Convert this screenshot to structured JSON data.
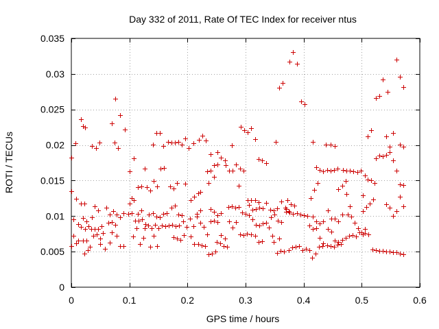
{
  "chart_data": {
    "type": "scatter",
    "title": "Day 332 of 2011, Rate Of TEC Index for receiver ntus",
    "xlabel": "GPS time / hours",
    "ylabel": "ROTI / TECUs",
    "xlim": [
      0,
      0.6
    ],
    "ylim": [
      0,
      0.035
    ],
    "xticks": [
      0,
      0.1,
      0.2,
      0.3,
      0.4,
      0.5,
      0.6
    ],
    "xtick_labels": [
      "0",
      "0.1",
      "0.2",
      "0.3",
      "0.4",
      "0.5",
      "0.6"
    ],
    "yticks": [
      0,
      0.005,
      0.01,
      0.015,
      0.02,
      0.025,
      0.03,
      0.035
    ],
    "ytick_labels": [
      "0",
      "0.005",
      "0.01",
      "0.015",
      "0.02",
      "0.025",
      "0.03",
      "0.035"
    ],
    "grid": true,
    "marker": "+",
    "color": "#cc0000",
    "points": [
      [
        0.0,
        0.0182
      ],
      [
        0.0,
        0.0135
      ],
      [
        0.004,
        0.0095
      ],
      [
        0.008,
        0.0124
      ],
      [
        0.012,
        0.0089
      ],
      [
        0.004,
        0.0072
      ],
      [
        0.008,
        0.0062
      ],
      [
        0.0,
        0.0058
      ],
      [
        0.012,
        0.0066
      ],
      [
        0.016,
        0.0236
      ],
      [
        0.02,
        0.0227
      ],
      [
        0.024,
        0.0225
      ],
      [
        0.007,
        0.0202
      ],
      [
        0.016,
        0.0118
      ],
      [
        0.022,
        0.0118
      ],
      [
        0.02,
        0.0097
      ],
      [
        0.026,
        0.0093
      ],
      [
        0.03,
        0.0086
      ],
      [
        0.034,
        0.0082
      ],
      [
        0.024,
        0.0082
      ],
      [
        0.016,
        0.0085
      ],
      [
        0.02,
        0.0066
      ],
      [
        0.026,
        0.0066
      ],
      [
        0.022,
        0.0047
      ],
      [
        0.028,
        0.0052
      ],
      [
        0.032,
        0.0057
      ],
      [
        0.036,
        0.0199
      ],
      [
        0.042,
        0.0196
      ],
      [
        0.048,
        0.0203
      ],
      [
        0.04,
        0.0114
      ],
      [
        0.046,
        0.0108
      ],
      [
        0.036,
        0.0098
      ],
      [
        0.04,
        0.0082
      ],
      [
        0.046,
        0.0082
      ],
      [
        0.052,
        0.0086
      ],
      [
        0.038,
        0.0072
      ],
      [
        0.044,
        0.0074
      ],
      [
        0.05,
        0.0068
      ],
      [
        0.054,
        0.0076
      ],
      [
        0.058,
        0.0054
      ],
      [
        0.05,
        0.0061
      ],
      [
        0.07,
        0.023
      ],
      [
        0.076,
        0.0265
      ],
      [
        0.084,
        0.0242
      ],
      [
        0.092,
        0.0222
      ],
      [
        0.074,
        0.0203
      ],
      [
        0.08,
        0.0196
      ],
      [
        0.06,
        0.0112
      ],
      [
        0.066,
        0.0102
      ],
      [
        0.072,
        0.0107
      ],
      [
        0.064,
        0.0091
      ],
      [
        0.07,
        0.0092
      ],
      [
        0.076,
        0.0088
      ],
      [
        0.078,
        0.0102
      ],
      [
        0.084,
        0.0098
      ],
      [
        0.09,
        0.0104
      ],
      [
        0.078,
        0.0072
      ],
      [
        0.084,
        0.0058
      ],
      [
        0.09,
        0.0058
      ],
      [
        0.066,
        0.0063
      ],
      [
        0.07,
        0.0077
      ],
      [
        0.1,
        0.0163
      ],
      [
        0.108,
        0.0181
      ],
      [
        0.114,
        0.0141
      ],
      [
        0.12,
        0.0142
      ],
      [
        0.126,
        0.0167
      ],
      [
        0.104,
        0.0125
      ],
      [
        0.098,
        0.0103
      ],
      [
        0.104,
        0.0104
      ],
      [
        0.11,
        0.0094
      ],
      [
        0.116,
        0.0094
      ],
      [
        0.122,
        0.0095
      ],
      [
        0.108,
        0.0122
      ],
      [
        0.114,
        0.0103
      ],
      [
        0.12,
        0.0108
      ],
      [
        0.126,
        0.0083
      ],
      [
        0.112,
        0.0083
      ],
      [
        0.106,
        0.0071
      ],
      [
        0.118,
        0.0061
      ],
      [
        0.124,
        0.0069
      ],
      [
        0.128,
        0.0089
      ],
      [
        0.1,
        0.0118
      ],
      [
        0.14,
        0.0201
      ],
      [
        0.146,
        0.0217
      ],
      [
        0.152,
        0.0217
      ],
      [
        0.158,
        0.0199
      ],
      [
        0.13,
        0.0141
      ],
      [
        0.136,
        0.0136
      ],
      [
        0.142,
        0.0149
      ],
      [
        0.148,
        0.0142
      ],
      [
        0.154,
        0.0167
      ],
      [
        0.16,
        0.0168
      ],
      [
        0.134,
        0.0102
      ],
      [
        0.14,
        0.0104
      ],
      [
        0.146,
        0.0099
      ],
      [
        0.152,
        0.0098
      ],
      [
        0.158,
        0.0103
      ],
      [
        0.164,
        0.0104
      ],
      [
        0.132,
        0.0087
      ],
      [
        0.138,
        0.0083
      ],
      [
        0.144,
        0.0088
      ],
      [
        0.15,
        0.0083
      ],
      [
        0.156,
        0.0087
      ],
      [
        0.162,
        0.0086
      ],
      [
        0.168,
        0.0087
      ],
      [
        0.136,
        0.0057
      ],
      [
        0.142,
        0.0072
      ],
      [
        0.148,
        0.0058
      ],
      [
        0.166,
        0.0204
      ],
      [
        0.172,
        0.0203
      ],
      [
        0.178,
        0.0203
      ],
      [
        0.184,
        0.0204
      ],
      [
        0.19,
        0.0201
      ],
      [
        0.196,
        0.0209
      ],
      [
        0.202,
        0.0196
      ],
      [
        0.17,
        0.0142
      ],
      [
        0.176,
        0.0139
      ],
      [
        0.182,
        0.0147
      ],
      [
        0.196,
        0.0146
      ],
      [
        0.172,
        0.0112
      ],
      [
        0.178,
        0.0115
      ],
      [
        0.184,
        0.0102
      ],
      [
        0.19,
        0.0101
      ],
      [
        0.174,
        0.0088
      ],
      [
        0.18,
        0.0086
      ],
      [
        0.186,
        0.0087
      ],
      [
        0.192,
        0.0093
      ],
      [
        0.198,
        0.0085
      ],
      [
        0.204,
        0.0096
      ],
      [
        0.176,
        0.007
      ],
      [
        0.182,
        0.0068
      ],
      [
        0.188,
        0.0067
      ],
      [
        0.194,
        0.0073
      ],
      [
        0.21,
        0.0202
      ],
      [
        0.22,
        0.0207
      ],
      [
        0.226,
        0.0213
      ],
      [
        0.232,
        0.0206
      ],
      [
        0.206,
        0.0122
      ],
      [
        0.212,
        0.0127
      ],
      [
        0.218,
        0.0132
      ],
      [
        0.222,
        0.0134
      ],
      [
        0.216,
        0.0103
      ],
      [
        0.222,
        0.0108
      ],
      [
        0.21,
        0.0086
      ],
      [
        0.216,
        0.0099
      ],
      [
        0.222,
        0.0091
      ],
      [
        0.228,
        0.0085
      ],
      [
        0.234,
        0.0074
      ],
      [
        0.206,
        0.0071
      ],
      [
        0.212,
        0.0061
      ],
      [
        0.218,
        0.0061
      ],
      [
        0.224,
        0.0059
      ],
      [
        0.23,
        0.0058
      ],
      [
        0.236,
        0.0046
      ],
      [
        0.242,
        0.0047
      ],
      [
        0.248,
        0.005
      ],
      [
        0.234,
        0.0163
      ],
      [
        0.24,
        0.0164
      ],
      [
        0.246,
        0.0172
      ],
      [
        0.252,
        0.0173
      ],
      [
        0.258,
        0.0182
      ],
      [
        0.264,
        0.0178
      ],
      [
        0.24,
        0.0187
      ],
      [
        0.246,
        0.0155
      ],
      [
        0.252,
        0.019
      ],
      [
        0.236,
        0.0147
      ],
      [
        0.24,
        0.011
      ],
      [
        0.246,
        0.0106
      ],
      [
        0.252,
        0.0101
      ],
      [
        0.258,
        0.0104
      ],
      [
        0.24,
        0.0093
      ],
      [
        0.246,
        0.0094
      ],
      [
        0.252,
        0.0092
      ],
      [
        0.258,
        0.0073
      ],
      [
        0.264,
        0.0068
      ],
      [
        0.25,
        0.0064
      ],
      [
        0.256,
        0.0062
      ],
      [
        0.262,
        0.0058
      ],
      [
        0.268,
        0.0057
      ],
      [
        0.266,
        0.0172
      ],
      [
        0.272,
        0.0164
      ],
      [
        0.278,
        0.0164
      ],
      [
        0.276,
        0.02
      ],
      [
        0.284,
        0.0173
      ],
      [
        0.29,
        0.0167
      ],
      [
        0.296,
        0.0164
      ],
      [
        0.27,
        0.0113
      ],
      [
        0.276,
        0.0114
      ],
      [
        0.282,
        0.0112
      ],
      [
        0.288,
        0.0113
      ],
      [
        0.294,
        0.0105
      ],
      [
        0.3,
        0.0103
      ],
      [
        0.272,
        0.0093
      ],
      [
        0.278,
        0.0084
      ],
      [
        0.284,
        0.0092
      ],
      [
        0.29,
        0.0074
      ],
      [
        0.296,
        0.0073
      ],
      [
        0.302,
        0.0075
      ],
      [
        0.288,
        0.0143
      ],
      [
        0.292,
        0.0226
      ],
      [
        0.298,
        0.0221
      ],
      [
        0.304,
        0.0218
      ],
      [
        0.31,
        0.0224
      ],
      [
        0.316,
        0.0208
      ],
      [
        0.322,
        0.018
      ],
      [
        0.328,
        0.0178
      ],
      [
        0.336,
        0.0175
      ],
      [
        0.304,
        0.0122
      ],
      [
        0.31,
        0.0122
      ],
      [
        0.316,
        0.0122
      ],
      [
        0.322,
        0.012
      ],
      [
        0.306,
        0.0116
      ],
      [
        0.312,
        0.0109
      ],
      [
        0.318,
        0.011
      ],
      [
        0.324,
        0.0112
      ],
      [
        0.33,
        0.0111
      ],
      [
        0.306,
        0.0101
      ],
      [
        0.312,
        0.0095
      ],
      [
        0.318,
        0.0088
      ],
      [
        0.324,
        0.0087
      ],
      [
        0.33,
        0.009
      ],
      [
        0.336,
        0.0091
      ],
      [
        0.31,
        0.0074
      ],
      [
        0.316,
        0.0072
      ],
      [
        0.322,
        0.0064
      ],
      [
        0.328,
        0.0065
      ],
      [
        0.336,
        0.0119
      ],
      [
        0.342,
        0.0109
      ],
      [
        0.348,
        0.0108
      ],
      [
        0.354,
        0.0111
      ],
      [
        0.344,
        0.0098
      ],
      [
        0.35,
        0.0102
      ],
      [
        0.356,
        0.0094
      ],
      [
        0.362,
        0.0092
      ],
      [
        0.34,
        0.0084
      ],
      [
        0.346,
        0.0072
      ],
      [
        0.352,
        0.0204
      ],
      [
        0.358,
        0.0281
      ],
      [
        0.364,
        0.0287
      ],
      [
        0.348,
        0.0064
      ],
      [
        0.354,
        0.0048
      ],
      [
        0.36,
        0.0051
      ],
      [
        0.366,
        0.005
      ],
      [
        0.358,
        0.0068
      ],
      [
        0.362,
        0.0121
      ],
      [
        0.368,
        0.0112
      ],
      [
        0.374,
        0.0107
      ],
      [
        0.376,
        0.0317
      ],
      [
        0.382,
        0.0331
      ],
      [
        0.388,
        0.0314
      ],
      [
        0.396,
        0.0261
      ],
      [
        0.402,
        0.0257
      ],
      [
        0.372,
        0.0122
      ],
      [
        0.378,
        0.0117
      ],
      [
        0.384,
        0.0115
      ],
      [
        0.37,
        0.011
      ],
      [
        0.376,
        0.0105
      ],
      [
        0.382,
        0.0103
      ],
      [
        0.388,
        0.0104
      ],
      [
        0.394,
        0.0102
      ],
      [
        0.4,
        0.0101
      ],
      [
        0.406,
        0.01
      ],
      [
        0.37,
        0.0106
      ],
      [
        0.374,
        0.0052
      ],
      [
        0.38,
        0.0056
      ],
      [
        0.386,
        0.0057
      ],
      [
        0.392,
        0.0058
      ],
      [
        0.398,
        0.0052
      ],
      [
        0.404,
        0.0054
      ],
      [
        0.41,
        0.0052
      ],
      [
        0.416,
        0.0204
      ],
      [
        0.422,
        0.0169
      ],
      [
        0.428,
        0.0165
      ],
      [
        0.434,
        0.0163
      ],
      [
        0.438,
        0.0201
      ],
      [
        0.412,
        0.0125
      ],
      [
        0.418,
        0.0137
      ],
      [
        0.424,
        0.0147
      ],
      [
        0.416,
        0.0099
      ],
      [
        0.422,
        0.0093
      ],
      [
        0.428,
        0.009
      ],
      [
        0.434,
        0.0093
      ],
      [
        0.41,
        0.0087
      ],
      [
        0.416,
        0.0082
      ],
      [
        0.422,
        0.0083
      ],
      [
        0.428,
        0.0069
      ],
      [
        0.434,
        0.0062
      ],
      [
        0.44,
        0.0059
      ],
      [
        0.414,
        0.0041
      ],
      [
        0.42,
        0.0047
      ],
      [
        0.426,
        0.0057
      ],
      [
        0.432,
        0.0058
      ],
      [
        0.44,
        0.0165
      ],
      [
        0.446,
        0.0164
      ],
      [
        0.452,
        0.0165
      ],
      [
        0.458,
        0.0167
      ],
      [
        0.446,
        0.0201
      ],
      [
        0.454,
        0.0199
      ],
      [
        0.442,
        0.0108
      ],
      [
        0.448,
        0.0096
      ],
      [
        0.454,
        0.0096
      ],
      [
        0.46,
        0.0093
      ],
      [
        0.466,
        0.0102
      ],
      [
        0.442,
        0.0082
      ],
      [
        0.448,
        0.0078
      ],
      [
        0.454,
        0.0066
      ],
      [
        0.46,
        0.0064
      ],
      [
        0.466,
        0.0067
      ],
      [
        0.472,
        0.0069
      ],
      [
        0.446,
        0.0058
      ],
      [
        0.452,
        0.0057
      ],
      [
        0.458,
        0.006
      ],
      [
        0.464,
        0.0061
      ],
      [
        0.46,
        0.0138
      ],
      [
        0.468,
        0.0165
      ],
      [
        0.474,
        0.0164
      ],
      [
        0.48,
        0.0164
      ],
      [
        0.486,
        0.0163
      ],
      [
        0.492,
        0.0162
      ],
      [
        0.498,
        0.0164
      ],
      [
        0.466,
        0.0143
      ],
      [
        0.472,
        0.0149
      ],
      [
        0.474,
        0.0131
      ],
      [
        0.48,
        0.0114
      ],
      [
        0.476,
        0.0102
      ],
      [
        0.482,
        0.0099
      ],
      [
        0.488,
        0.0091
      ],
      [
        0.494,
        0.0083
      ],
      [
        0.5,
        0.0077
      ],
      [
        0.478,
        0.0072
      ],
      [
        0.484,
        0.0073
      ],
      [
        0.49,
        0.0071
      ],
      [
        0.496,
        0.0077
      ],
      [
        0.502,
        0.0074
      ],
      [
        0.506,
        0.0076
      ],
      [
        0.502,
        0.0107
      ],
      [
        0.506,
        0.0157
      ],
      [
        0.51,
        0.0151
      ],
      [
        0.516,
        0.015
      ],
      [
        0.522,
        0.0147
      ],
      [
        0.51,
        0.0212
      ],
      [
        0.516,
        0.0221
      ],
      [
        0.524,
        0.0181
      ],
      [
        0.53,
        0.0185
      ],
      [
        0.536,
        0.0184
      ],
      [
        0.542,
        0.0186
      ],
      [
        0.548,
        0.019
      ],
      [
        0.524,
        0.0266
      ],
      [
        0.53,
        0.0269
      ],
      [
        0.536,
        0.0292
      ],
      [
        0.544,
        0.0275
      ],
      [
        0.502,
        0.0129
      ],
      [
        0.508,
        0.0113
      ],
      [
        0.514,
        0.0118
      ],
      [
        0.52,
        0.0123
      ],
      [
        0.506,
        0.0082
      ],
      [
        0.512,
        0.0074
      ],
      [
        0.518,
        0.0053
      ],
      [
        0.524,
        0.0052
      ],
      [
        0.53,
        0.0051
      ],
      [
        0.536,
        0.0051
      ],
      [
        0.542,
        0.005
      ],
      [
        0.548,
        0.005
      ],
      [
        0.542,
        0.0212
      ],
      [
        0.554,
        0.0217
      ],
      [
        0.56,
        0.032
      ],
      [
        0.566,
        0.0296
      ],
      [
        0.572,
        0.0282
      ],
      [
        0.548,
        0.0198
      ],
      [
        0.554,
        0.0178
      ],
      [
        0.56,
        0.0164
      ],
      [
        0.566,
        0.0145
      ],
      [
        0.572,
        0.0144
      ],
      [
        0.566,
        0.0201
      ],
      [
        0.572,
        0.0198
      ],
      [
        0.542,
        0.0117
      ],
      [
        0.548,
        0.0112
      ],
      [
        0.554,
        0.01
      ],
      [
        0.56,
        0.0107
      ],
      [
        0.566,
        0.0127
      ],
      [
        0.572,
        0.0114
      ],
      [
        0.554,
        0.0049
      ],
      [
        0.56,
        0.0049
      ],
      [
        0.566,
        0.0047
      ],
      [
        0.572,
        0.0046
      ]
    ]
  }
}
